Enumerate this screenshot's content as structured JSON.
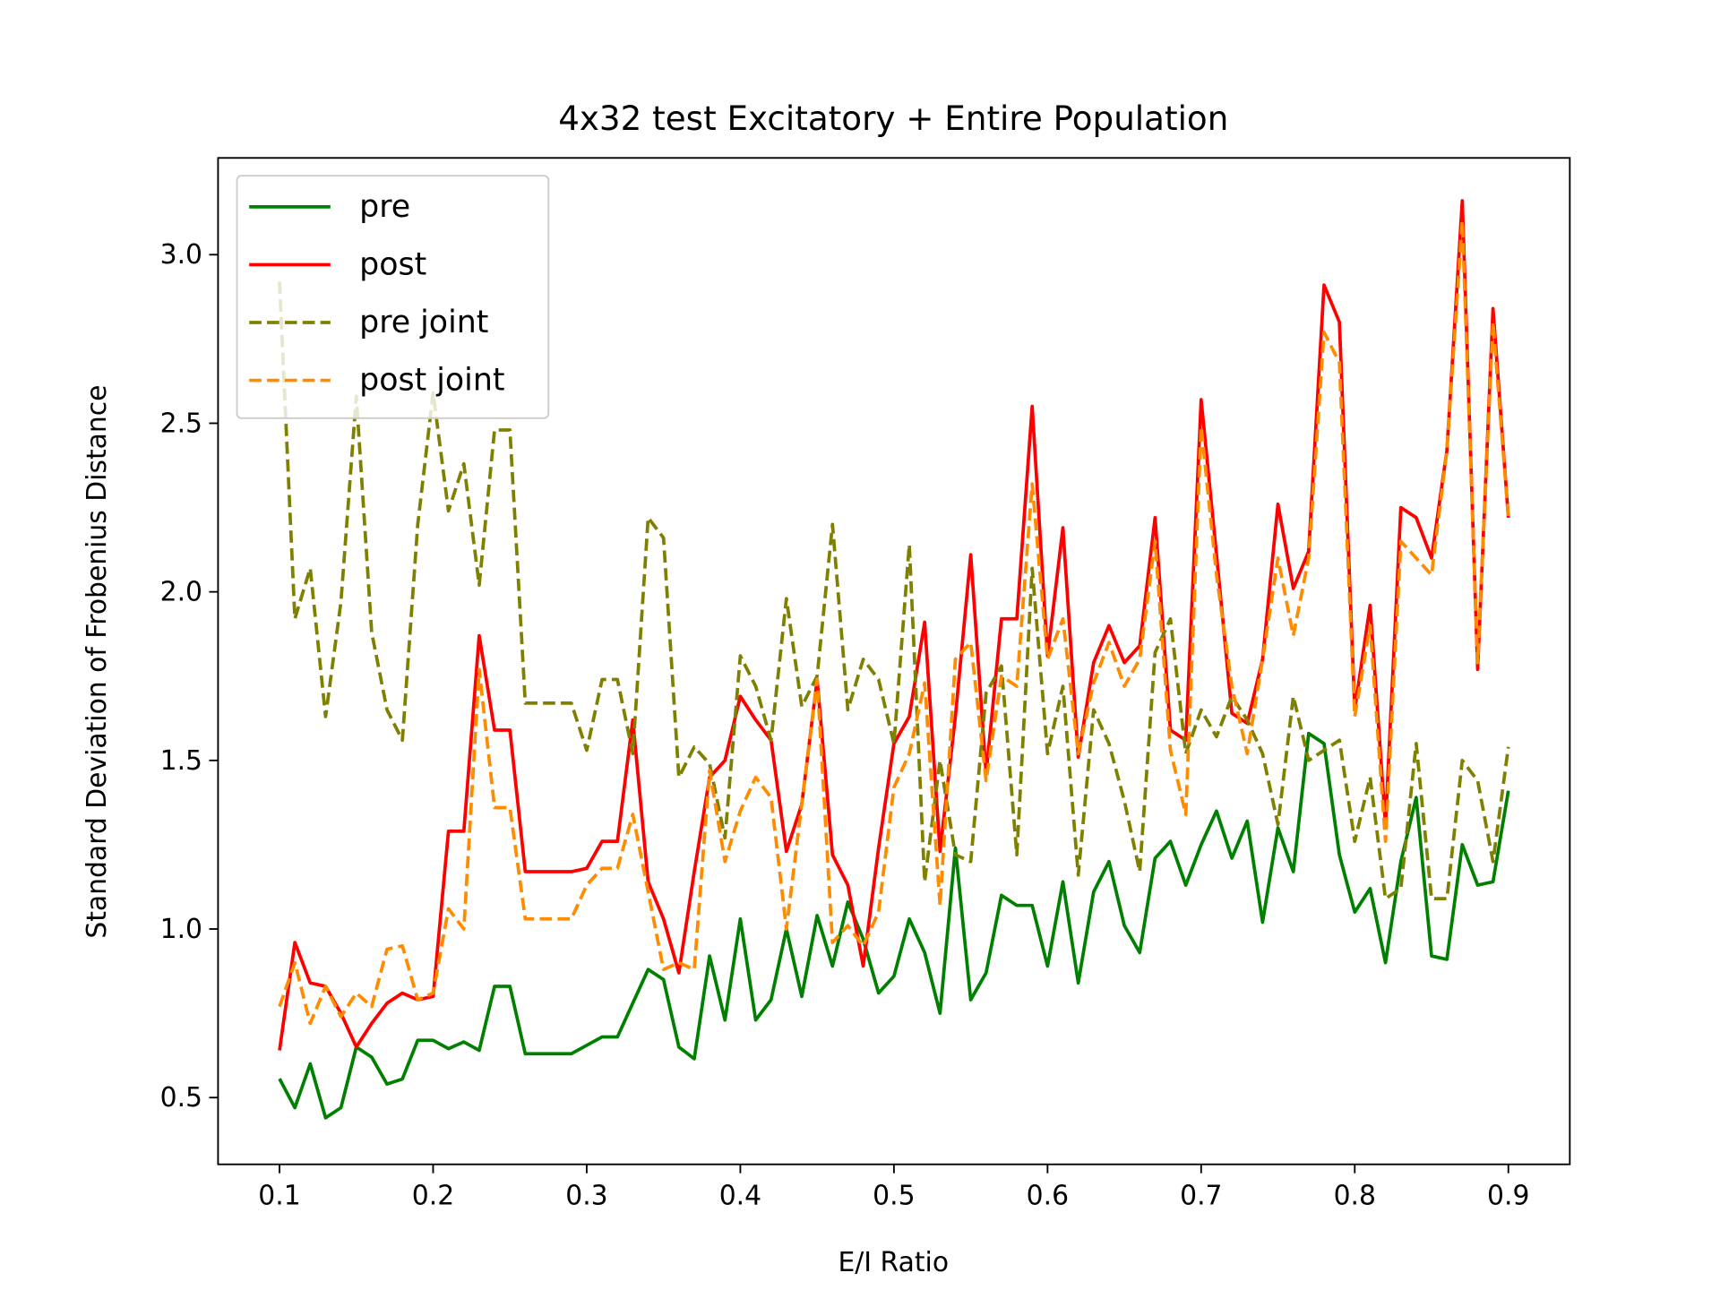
{
  "chart_data": {
    "type": "line",
    "title": "4x32 test Excitatory + Entire Population",
    "xlabel": "E/I Ratio",
    "ylabel": "Standard Deviation of Frobenius Distance",
    "legend": "upper left",
    "xlim": [
      0.06,
      0.94
    ],
    "ylim": [
      0.302,
      3.287
    ],
    "xticks": [
      0.1,
      0.2,
      0.3,
      0.4,
      0.5,
      0.6,
      0.7,
      0.8,
      0.9
    ],
    "yticks": [
      0.5,
      {
        "value": 1,
        "label": "1.0"
      },
      1.5,
      {
        "value": 2,
        "label": "2.0"
      },
      2.5,
      {
        "value": 3,
        "label": "3.0"
      }
    ],
    "x": [
      0.1,
      0.11,
      0.12,
      0.13,
      0.14,
      0.15,
      0.16,
      0.17,
      0.18,
      0.19,
      0.2,
      0.21,
      0.22,
      0.23,
      0.24,
      0.25,
      0.26,
      0.27,
      0.28,
      0.29,
      0.3,
      0.31,
      0.32,
      0.33,
      0.34,
      0.35,
      0.36,
      0.37,
      0.38,
      0.39,
      0.4,
      0.41,
      0.42,
      0.43,
      0.44,
      0.45,
      0.46,
      0.47,
      0.48,
      0.49,
      0.5,
      0.51,
      0.52,
      0.53,
      0.54,
      0.55,
      0.56,
      0.57,
      0.58,
      0.59,
      0.6,
      0.61,
      0.62,
      0.63,
      0.64,
      0.65,
      0.66,
      0.67,
      0.68,
      0.69,
      0.7,
      0.71,
      0.72,
      0.73,
      0.74,
      0.75,
      0.76,
      0.77,
      0.78,
      0.79,
      0.8,
      0.81,
      0.82,
      0.83,
      0.84,
      0.85,
      0.86,
      0.87,
      0.88,
      0.89,
      0.9
    ],
    "series": [
      {
        "name": "pre",
        "color": "#008000",
        "dashed": false,
        "values": [
          0.556,
          0.47,
          0.6,
          0.44,
          0.47,
          0.65,
          0.62,
          0.54,
          0.555,
          0.67,
          0.67,
          0.645,
          0.665,
          0.64,
          0.83,
          0.83,
          0.63,
          0.63,
          0.63,
          0.63,
          0.655,
          0.68,
          0.68,
          0.78,
          0.88,
          0.85,
          0.65,
          0.615,
          0.92,
          0.73,
          1.03,
          0.73,
          0.79,
          1.0,
          0.8,
          1.04,
          0.89,
          1.08,
          0.97,
          0.81,
          0.86,
          1.03,
          0.93,
          0.75,
          1.24,
          0.79,
          0.87,
          1.1,
          1.07,
          1.07,
          0.89,
          1.14,
          0.84,
          1.11,
          1.2,
          1.01,
          0.93,
          1.21,
          1.26,
          1.13,
          1.25,
          1.35,
          1.21,
          1.32,
          1.02,
          1.3,
          1.17,
          1.58,
          1.55,
          1.22,
          1.05,
          1.12,
          0.9,
          1.2,
          1.39,
          0.92,
          0.91,
          1.25,
          1.13,
          1.14,
          1.41
        ]
      },
      {
        "name": "post",
        "color": "#ff0000",
        "dashed": false,
        "values": [
          0.64,
          0.96,
          0.84,
          0.83,
          0.75,
          0.65,
          0.72,
          0.78,
          0.81,
          0.79,
          0.8,
          1.29,
          1.29,
          1.87,
          1.59,
          1.59,
          1.17,
          1.17,
          1.17,
          1.17,
          1.18,
          1.26,
          1.26,
          1.62,
          1.14,
          1.03,
          0.87,
          1.17,
          1.45,
          1.5,
          1.69,
          1.62,
          1.56,
          1.23,
          1.37,
          1.74,
          1.22,
          1.13,
          0.89,
          1.24,
          1.55,
          1.63,
          1.91,
          1.23,
          1.63,
          2.11,
          1.46,
          1.92,
          1.92,
          2.55,
          1.81,
          2.19,
          1.51,
          1.79,
          1.9,
          1.79,
          1.84,
          2.22,
          1.59,
          1.56,
          2.57,
          2.11,
          1.64,
          1.61,
          1.8,
          2.26,
          2.01,
          2.12,
          2.91,
          2.8,
          1.65,
          1.96,
          1.31,
          2.25,
          2.22,
          2.1,
          2.42,
          3.16,
          1.77,
          2.84,
          2.22
        ]
      },
      {
        "name": "pre joint",
        "color": "#808000",
        "dashed": true,
        "values": [
          2.92,
          1.92,
          2.07,
          1.63,
          1.97,
          2.58,
          1.88,
          1.65,
          1.56,
          2.2,
          2.59,
          2.24,
          2.38,
          2.02,
          2.48,
          2.48,
          1.67,
          1.67,
          1.67,
          1.67,
          1.53,
          1.74,
          1.74,
          1.52,
          2.22,
          2.16,
          1.45,
          1.54,
          1.49,
          1.27,
          1.81,
          1.72,
          1.56,
          1.98,
          1.66,
          1.75,
          2.2,
          1.65,
          1.8,
          1.74,
          1.55,
          2.14,
          1.14,
          1.5,
          1.22,
          1.2,
          1.7,
          1.78,
          1.22,
          2.07,
          1.52,
          1.72,
          1.16,
          1.65,
          1.55,
          1.38,
          1.17,
          1.82,
          1.92,
          1.52,
          1.65,
          1.57,
          1.69,
          1.62,
          1.52,
          1.31,
          1.69,
          1.5,
          1.53,
          1.56,
          1.26,
          1.45,
          1.09,
          1.12,
          1.55,
          1.09,
          1.09,
          1.5,
          1.44,
          1.2,
          1.54
        ]
      },
      {
        "name": "post joint",
        "color": "#ff8c00",
        "dashed": true,
        "values": [
          0.77,
          0.9,
          0.72,
          0.83,
          0.74,
          0.81,
          0.77,
          0.94,
          0.95,
          0.79,
          0.81,
          1.06,
          1.0,
          1.77,
          1.36,
          1.36,
          1.03,
          1.03,
          1.03,
          1.03,
          1.13,
          1.18,
          1.18,
          1.34,
          1.11,
          0.88,
          0.9,
          0.88,
          1.47,
          1.2,
          1.35,
          1.45,
          1.39,
          1.0,
          1.37,
          1.74,
          0.96,
          1.01,
          0.95,
          1.05,
          1.42,
          1.52,
          1.73,
          1.07,
          1.8,
          1.85,
          1.44,
          1.75,
          1.72,
          2.32,
          1.8,
          1.92,
          1.52,
          1.73,
          1.85,
          1.72,
          1.8,
          2.15,
          1.53,
          1.34,
          2.49,
          2.05,
          1.72,
          1.52,
          1.8,
          2.1,
          1.87,
          2.1,
          2.77,
          2.68,
          1.63,
          1.9,
          1.26,
          2.15,
          2.1,
          2.05,
          2.42,
          3.1,
          1.79,
          2.8,
          2.22
        ]
      }
    ]
  }
}
